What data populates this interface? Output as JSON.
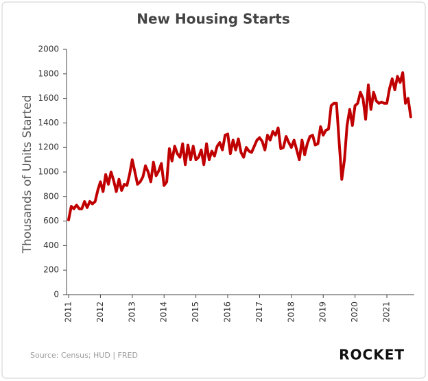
{
  "chart_data": {
    "type": "line",
    "title": "New Housing Starts",
    "y_label": "Thousands of Units Started",
    "source": "Source: Census; HUD | FRED",
    "brand": "ROCKET",
    "categories": [
      "2011",
      null,
      null,
      null,
      null,
      null,
      null,
      null,
      null,
      null,
      null,
      null,
      "2012",
      null,
      null,
      null,
      null,
      null,
      null,
      null,
      null,
      null,
      null,
      null,
      "2013",
      null,
      null,
      null,
      null,
      null,
      null,
      null,
      null,
      null,
      null,
      null,
      "2014",
      null,
      null,
      null,
      null,
      null,
      null,
      null,
      null,
      null,
      null,
      null,
      "2015",
      null,
      null,
      null,
      null,
      null,
      null,
      null,
      null,
      null,
      null,
      null,
      "2016",
      null,
      null,
      null,
      null,
      null,
      null,
      null,
      null,
      null,
      null,
      null,
      "2017",
      null,
      null,
      null,
      null,
      null,
      null,
      null,
      null,
      null,
      null,
      null,
      "2018",
      null,
      null,
      null,
      null,
      null,
      null,
      null,
      null,
      null,
      null,
      null,
      "2019",
      null,
      null,
      null,
      null,
      null,
      null,
      null,
      null,
      null,
      null,
      null,
      "2020",
      null,
      null,
      null,
      null,
      null,
      null,
      null,
      null,
      null,
      null,
      null,
      "2021",
      null,
      null,
      null,
      null,
      null,
      null,
      null,
      null,
      null
    ],
    "series": [
      {
        "name": "Housing Starts",
        "color": "#c00000",
        "values": [
          610,
          720,
          700,
          730,
          700,
          700,
          760,
          710,
          760,
          740,
          760,
          850,
          920,
          840,
          980,
          900,
          1000,
          930,
          840,
          940,
          850,
          900,
          890,
          980,
          1100,
          1000,
          900,
          920,
          960,
          1050,
          1000,
          920,
          1080,
          970,
          1010,
          1070,
          890,
          920,
          1190,
          1090,
          1210,
          1150,
          1120,
          1230,
          1060,
          1220,
          1100,
          1210,
          1100,
          1120,
          1180,
          1060,
          1230,
          1100,
          1170,
          1130,
          1210,
          1240,
          1180,
          1300,
          1310,
          1150,
          1260,
          1180,
          1270,
          1160,
          1120,
          1200,
          1170,
          1160,
          1210,
          1260,
          1280,
          1250,
          1180,
          1300,
          1260,
          1330,
          1300,
          1360,
          1190,
          1200,
          1290,
          1240,
          1200,
          1260,
          1180,
          1100,
          1260,
          1140,
          1230,
          1290,
          1300,
          1220,
          1230,
          1370,
          1300,
          1340,
          1350,
          1540,
          1560,
          1560,
          1250,
          940,
          1100,
          1380,
          1510,
          1380,
          1540,
          1560,
          1650,
          1600,
          1430,
          1710,
          1510,
          1650,
          1580,
          1560,
          1570,
          1560,
          1560,
          1680,
          1760,
          1670,
          1780,
          1730,
          1810,
          1560,
          1600,
          1450
        ]
      }
    ],
    "ylim": [
      0,
      2000
    ],
    "yticks": [
      0,
      200,
      400,
      600,
      800,
      1000,
      1200,
      1400,
      1600,
      1800,
      2000
    ],
    "grid": false
  }
}
